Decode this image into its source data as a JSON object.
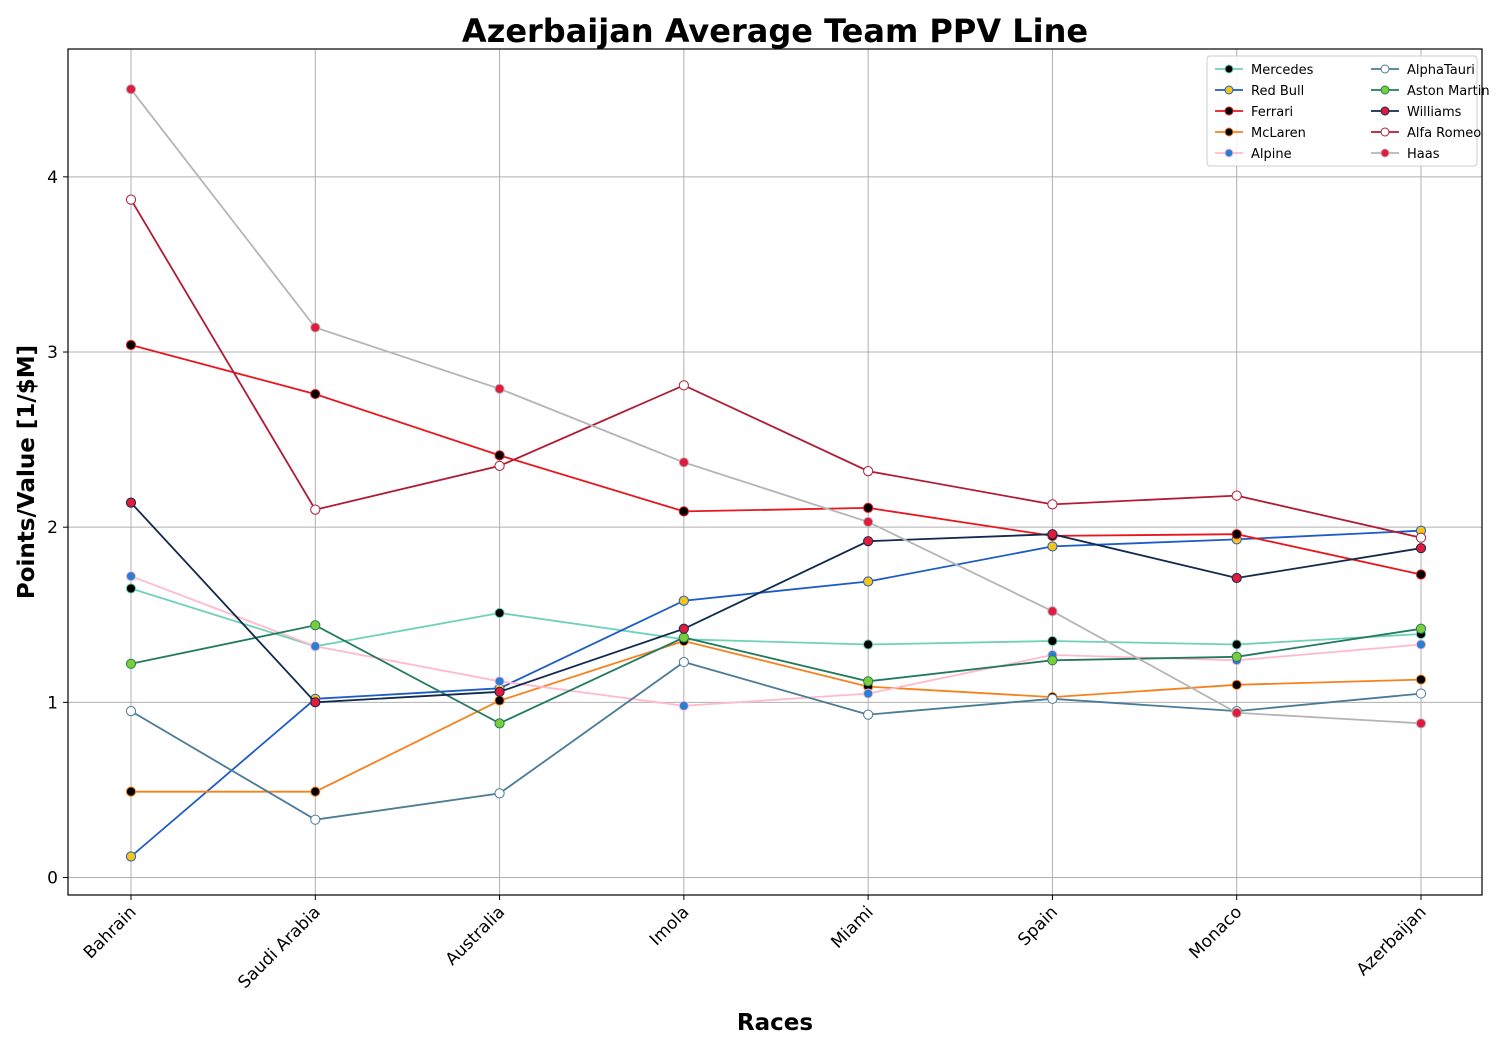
{
  "chart_data": {
    "type": "line",
    "title": "Azerbaijan Average Team PPV Line",
    "xlabel": "Races",
    "ylabel": "Points/Value [1/$M]",
    "categories": [
      "Bahrain",
      "Saudi Arabia",
      "Australia",
      "Imola",
      "Miami",
      "Spain",
      "Monaco",
      "Azerbaijan"
    ],
    "ylim": [
      -0.1,
      4.73
    ],
    "yticks": [
      0,
      1,
      2,
      3,
      4
    ],
    "grid": true,
    "legend_position": "top-right",
    "series": [
      {
        "name": "Mercedes",
        "line_color": "#6fd1b8",
        "marker_fill": "#000000",
        "marker_edge": "#6fd1b8",
        "values": [
          1.65,
          1.32,
          1.51,
          1.36,
          1.33,
          1.35,
          1.33,
          1.39
        ]
      },
      {
        "name": "Red Bull",
        "line_color": "#1e5bc6",
        "marker_fill": "#f5c518",
        "marker_edge": "#1e5bc6",
        "values": [
          0.12,
          1.02,
          1.08,
          1.58,
          1.69,
          1.89,
          1.93,
          1.98
        ]
      },
      {
        "name": "Ferrari",
        "line_color": "#e8161d",
        "marker_fill": "#000000",
        "marker_edge": "#e8161d",
        "values": [
          3.04,
          2.76,
          2.41,
          2.09,
          2.11,
          1.95,
          1.96,
          1.73
        ]
      },
      {
        "name": "McLaren",
        "line_color": "#f5821f",
        "marker_fill": "#000000",
        "marker_edge": "#f5821f",
        "values": [
          0.49,
          0.49,
          1.01,
          1.35,
          1.09,
          1.03,
          1.1,
          1.13
        ]
      },
      {
        "name": "Alpine",
        "line_color": "#ffbbcc",
        "marker_fill": "#2a7fd4",
        "marker_edge": "#ffbbcc",
        "values": [
          1.72,
          1.32,
          1.12,
          0.98,
          1.05,
          1.27,
          1.24,
          1.33
        ]
      },
      {
        "name": "AlphaTauri",
        "line_color": "#4b7b97",
        "marker_fill": "#ffffff",
        "marker_edge": "#4b7b97",
        "values": [
          0.95,
          0.33,
          0.48,
          1.23,
          0.93,
          1.02,
          0.95,
          1.05
        ]
      },
      {
        "name": "Aston Martin",
        "line_color": "#237a60",
        "marker_fill": "#7ccd3a",
        "marker_edge": "#237a60",
        "values": [
          1.22,
          1.44,
          0.88,
          1.37,
          1.12,
          1.24,
          1.26,
          1.42
        ]
      },
      {
        "name": "Williams",
        "line_color": "#122a4c",
        "marker_fill": "#e01b3c",
        "marker_edge": "#122a4c",
        "values": [
          2.14,
          1.0,
          1.06,
          1.42,
          1.92,
          1.96,
          1.71,
          1.88
        ]
      },
      {
        "name": "Alfa Romeo",
        "line_color": "#b01c35",
        "marker_fill": "#ffffff",
        "marker_edge": "#b01c35",
        "values": [
          3.87,
          2.1,
          2.35,
          2.81,
          2.32,
          2.13,
          2.18,
          1.94
        ]
      },
      {
        "name": "Haas",
        "line_color": "#b5b5b5",
        "marker_fill": "#e01b3c",
        "marker_edge": "#b5b5b5",
        "values": [
          4.5,
          3.14,
          2.79,
          2.37,
          2.03,
          1.52,
          0.94,
          0.88
        ]
      }
    ]
  }
}
